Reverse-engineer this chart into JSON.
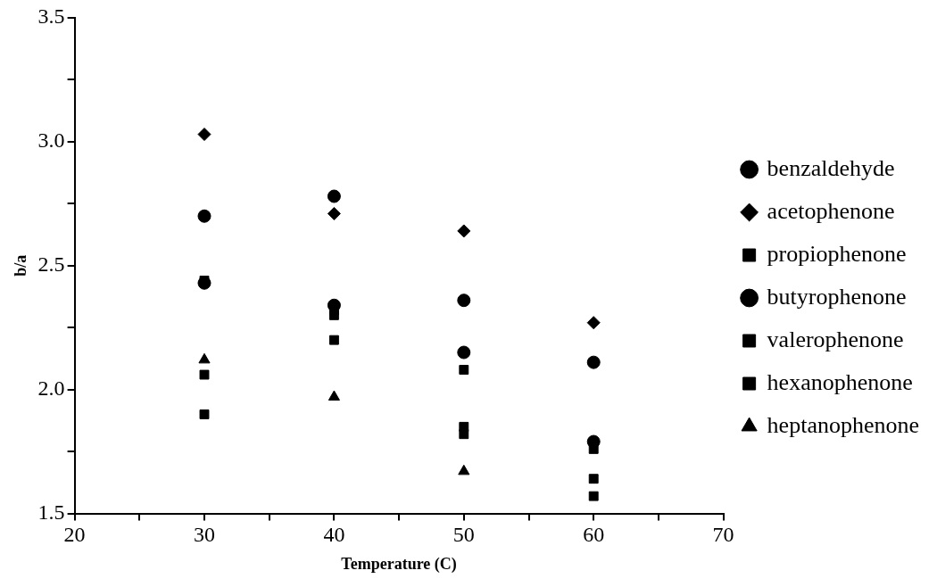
{
  "chart_data": {
    "type": "scatter",
    "xlabel": "Temperature (C)",
    "ylabel": "b/a",
    "x": [
      30,
      40,
      50,
      60
    ],
    "series": [
      {
        "name": "benzaldehyde",
        "color": "#000000",
        "marker": "circle",
        "values": [
          2.7,
          2.78,
          2.36,
          2.11
        ]
      },
      {
        "name": "acetophenone",
        "color": "#000000",
        "marker": "diamond",
        "values": [
          3.03,
          2.71,
          2.64,
          2.27
        ]
      },
      {
        "name": "propiophenone",
        "color": "#000000",
        "marker": "square",
        "values": [
          2.44,
          2.32,
          2.08,
          1.76
        ]
      },
      {
        "name": "butyrophenone",
        "color": "#000000",
        "marker": "circle",
        "values": [
          2.43,
          2.34,
          2.15,
          1.79
        ]
      },
      {
        "name": "valerophenone",
        "color": "#000000",
        "marker": "square",
        "values": [
          2.06,
          2.3,
          1.82,
          1.64
        ]
      },
      {
        "name": "hexanophenone",
        "color": "#000000",
        "marker": "square",
        "values": [
          1.9,
          2.2,
          1.85,
          1.57
        ]
      },
      {
        "name": "heptanophenone",
        "color": "#000000",
        "marker": "triangle",
        "values": [
          2.12,
          1.97,
          1.67,
          null
        ]
      }
    ],
    "xlim": [
      20,
      70
    ],
    "xticks": [
      20,
      {
        "value": 25,
        "label": null
      },
      30,
      {
        "value": 35,
        "label": null
      },
      40,
      {
        "value": 45,
        "label": null
      },
      50,
      {
        "value": 55,
        "label": null
      },
      60,
      {
        "value": 65,
        "label": null
      },
      70
    ],
    "ylim": [
      1.5,
      3.5
    ],
    "yticks": [
      {
        "value": 1.5,
        "label": "1.5"
      },
      {
        "value": 1.75,
        "label": null
      },
      {
        "value": 2.0,
        "label": "2.0"
      },
      {
        "value": 2.25,
        "label": null
      },
      {
        "value": 2.5,
        "label": "2.5"
      },
      {
        "value": 2.75,
        "label": null
      },
      {
        "value": 3.0,
        "label": "3.0"
      },
      {
        "value": 3.25,
        "label": null
      },
      {
        "value": 3.5,
        "label": "3.5"
      }
    ],
    "grid": false,
    "legend": "right"
  }
}
